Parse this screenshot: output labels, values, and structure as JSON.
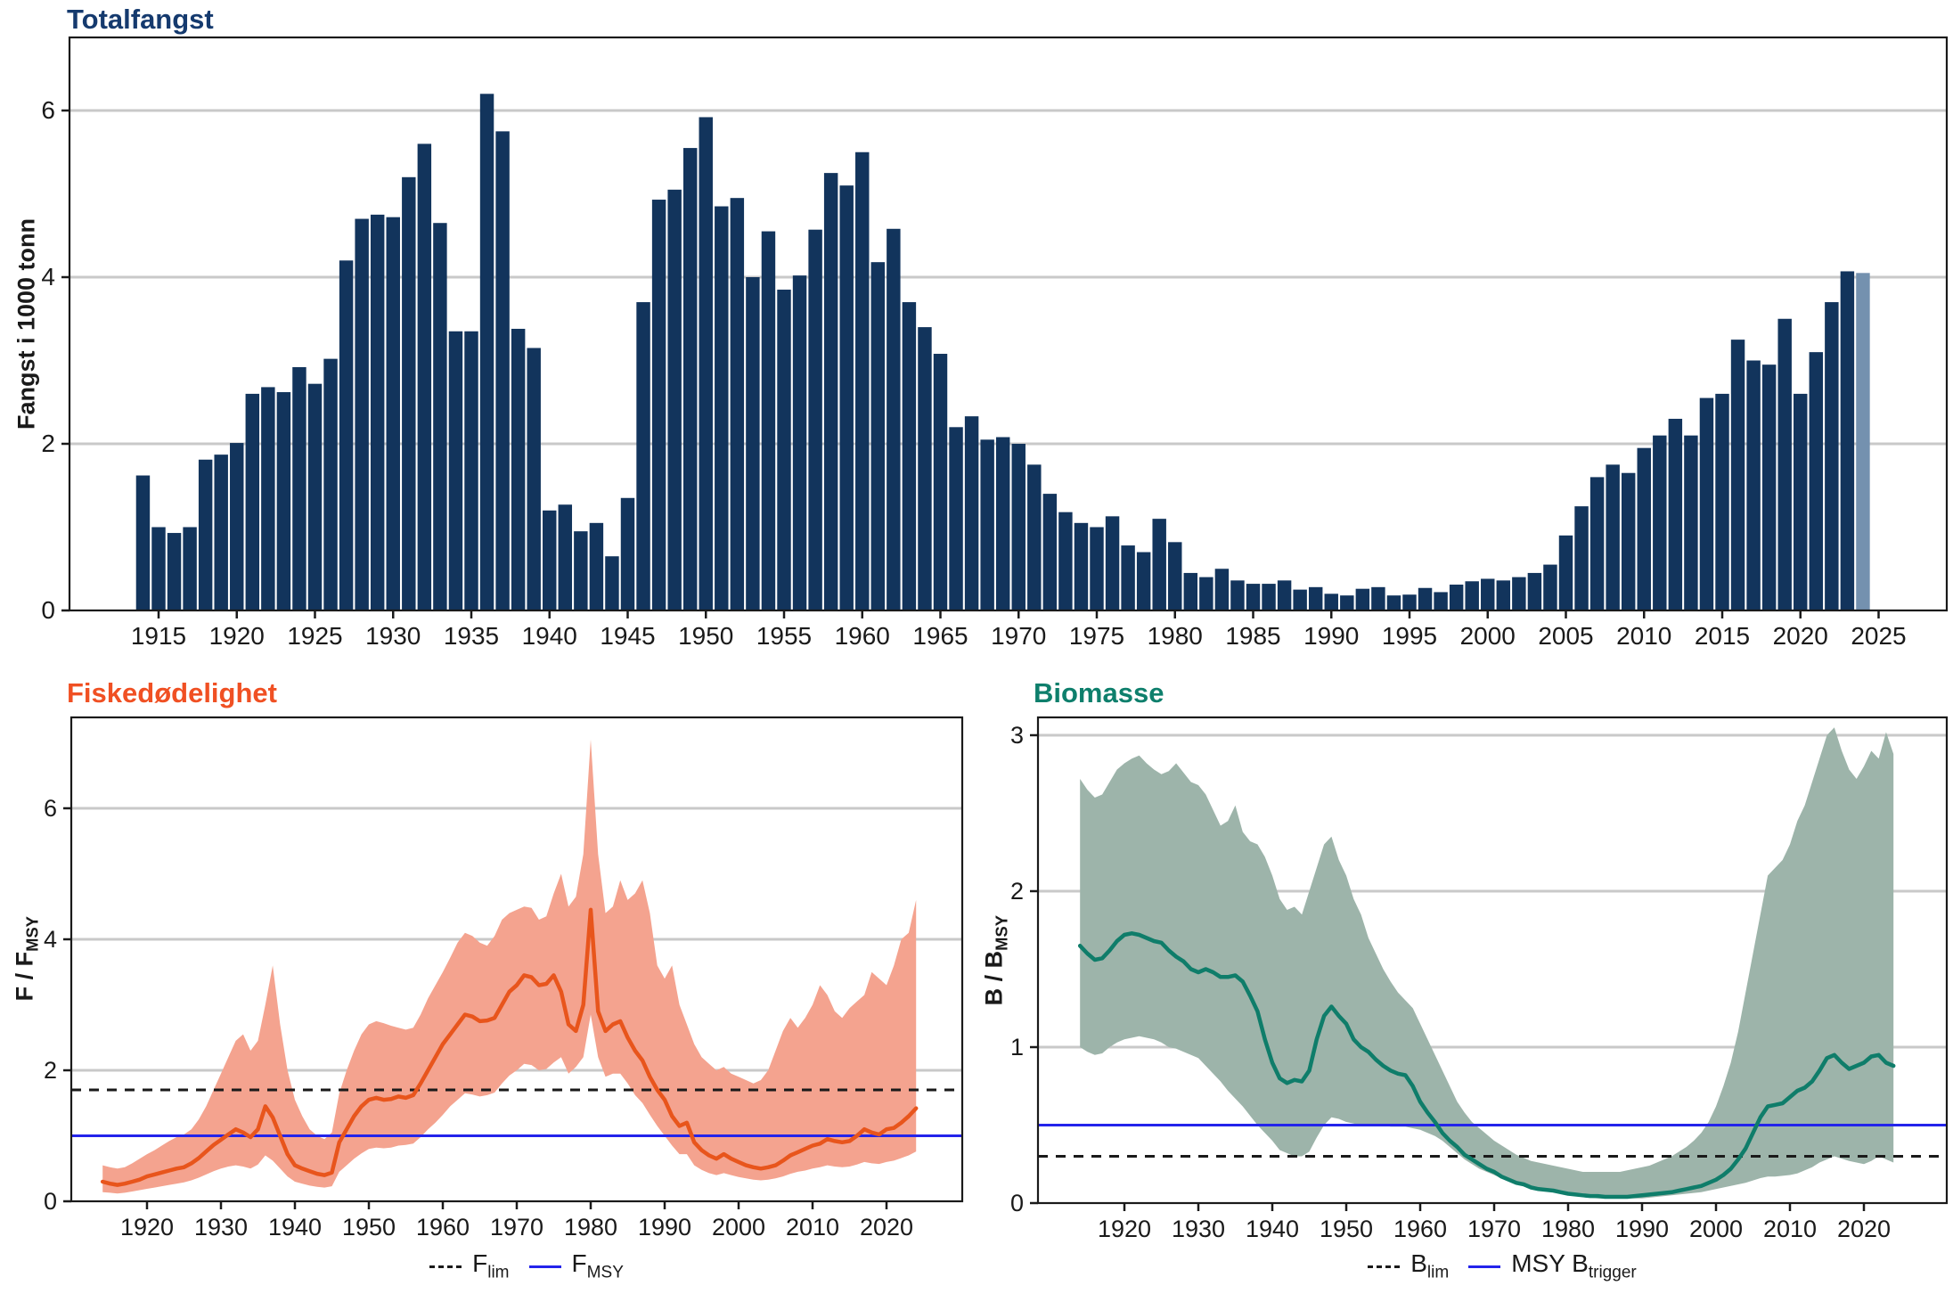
{
  "chart_data": [
    {
      "id": "totalfangst",
      "type": "bar",
      "title": "Totalfangst",
      "ylabel": "Fangst i 1000 tonn",
      "x_start_year": 1914,
      "values": [
        1.62,
        1.0,
        0.93,
        1.0,
        1.81,
        1.87,
        2.01,
        2.6,
        2.68,
        2.62,
        2.92,
        2.72,
        3.02,
        4.2,
        4.7,
        4.75,
        4.72,
        5.2,
        5.6,
        4.65,
        3.35,
        3.35,
        6.2,
        5.75,
        3.38,
        3.15,
        1.2,
        1.27,
        0.95,
        1.05,
        0.65,
        1.35,
        3.7,
        4.93,
        5.05,
        5.55,
        5.92,
        4.85,
        4.95,
        4.0,
        4.55,
        3.85,
        4.02,
        4.57,
        5.25,
        5.1,
        5.5,
        4.18,
        4.58,
        3.7,
        3.4,
        3.08,
        2.2,
        2.33,
        2.05,
        2.08,
        2.0,
        1.75,
        1.4,
        1.18,
        1.05,
        1.0,
        1.13,
        0.78,
        0.7,
        1.1,
        0.82,
        0.45,
        0.4,
        0.5,
        0.36,
        0.32,
        0.32,
        0.36,
        0.25,
        0.28,
        0.2,
        0.18,
        0.26,
        0.28,
        0.18,
        0.19,
        0.27,
        0.22,
        0.31,
        0.35,
        0.38,
        0.36,
        0.4,
        0.45,
        0.55,
        0.9,
        1.25,
        1.6,
        1.75,
        1.65,
        1.95,
        2.1,
        2.3,
        2.1,
        2.55,
        2.6,
        3.25,
        3.0,
        2.95,
        3.5,
        2.6,
        3.1,
        3.7,
        4.07
      ],
      "forecast": {
        "year": 2024,
        "value": 4.05
      },
      "xticks": [
        1915,
        1920,
        1925,
        1930,
        1935,
        1940,
        1945,
        1950,
        1955,
        1960,
        1965,
        1970,
        1975,
        1980,
        1985,
        1990,
        1995,
        2000,
        2005,
        2010,
        2015,
        2020,
        2025
      ],
      "yticks": [
        0,
        2,
        4,
        6
      ],
      "ylim": [
        0,
        6.88
      ],
      "grid": "horizontal",
      "legend_position": "none",
      "colors": {
        "bar": "#12345c",
        "forecast_bar": "#7491af",
        "title": "#153a6e"
      }
    },
    {
      "id": "fiskedodelighet",
      "type": "line+band",
      "title": "Fiskedødelighet",
      "ylabel_main": "F / F",
      "ylabel_sub": "MSY",
      "x_start_year": 1914,
      "line": [
        0.3,
        0.27,
        0.25,
        0.27,
        0.3,
        0.33,
        0.38,
        0.41,
        0.44,
        0.47,
        0.5,
        0.52,
        0.58,
        0.66,
        0.76,
        0.86,
        0.94,
        1.02,
        1.1,
        1.05,
        0.98,
        1.1,
        1.45,
        1.28,
        1.0,
        0.72,
        0.55,
        0.5,
        0.46,
        0.42,
        0.4,
        0.44,
        0.9,
        1.1,
        1.3,
        1.45,
        1.55,
        1.58,
        1.55,
        1.56,
        1.6,
        1.58,
        1.62,
        1.8,
        2.0,
        2.2,
        2.4,
        2.55,
        2.7,
        2.85,
        2.82,
        2.75,
        2.76,
        2.8,
        3.0,
        3.2,
        3.3,
        3.45,
        3.42,
        3.3,
        3.32,
        3.45,
        3.2,
        2.7,
        2.6,
        3.0,
        4.45,
        2.9,
        2.6,
        2.7,
        2.75,
        2.5,
        2.3,
        2.15,
        1.9,
        1.7,
        1.55,
        1.3,
        1.15,
        1.2,
        0.9,
        0.78,
        0.7,
        0.65,
        0.72,
        0.65,
        0.6,
        0.55,
        0.52,
        0.5,
        0.52,
        0.55,
        0.62,
        0.7,
        0.75,
        0.8,
        0.85,
        0.88,
        0.95,
        0.92,
        0.9,
        0.92,
        1.0,
        1.1,
        1.05,
        1.02,
        1.1,
        1.12,
        1.2,
        1.3,
        1.42
      ],
      "band_upper": [
        0.55,
        0.52,
        0.5,
        0.52,
        0.58,
        0.65,
        0.72,
        0.78,
        0.85,
        0.92,
        0.98,
        1.02,
        1.1,
        1.25,
        1.45,
        1.7,
        1.95,
        2.2,
        2.45,
        2.55,
        2.3,
        2.45,
        3.0,
        3.6,
        2.7,
        2.0,
        1.55,
        1.3,
        1.1,
        1.0,
        0.95,
        1.05,
        1.65,
        2.0,
        2.3,
        2.55,
        2.7,
        2.75,
        2.72,
        2.68,
        2.65,
        2.62,
        2.65,
        2.85,
        3.1,
        3.3,
        3.5,
        3.72,
        3.95,
        4.1,
        4.05,
        3.95,
        3.9,
        4.05,
        4.3,
        4.4,
        4.45,
        4.5,
        4.48,
        4.3,
        4.35,
        4.7,
        5.0,
        4.5,
        4.65,
        5.3,
        7.05,
        5.3,
        4.4,
        4.5,
        4.9,
        4.6,
        4.7,
        4.9,
        4.4,
        3.6,
        3.4,
        3.6,
        3.0,
        2.7,
        2.4,
        2.2,
        2.1,
        2.0,
        2.05,
        1.95,
        1.9,
        1.85,
        1.8,
        1.85,
        2.0,
        2.3,
        2.6,
        2.8,
        2.65,
        2.8,
        3.0,
        3.3,
        3.15,
        2.9,
        2.8,
        2.95,
        3.05,
        3.15,
        3.5,
        3.4,
        3.3,
        3.6,
        4.0,
        4.1,
        4.6
      ],
      "band_lower": [
        0.14,
        0.13,
        0.12,
        0.13,
        0.15,
        0.17,
        0.19,
        0.21,
        0.23,
        0.25,
        0.27,
        0.29,
        0.32,
        0.36,
        0.41,
        0.46,
        0.5,
        0.53,
        0.55,
        0.53,
        0.5,
        0.56,
        0.7,
        0.62,
        0.5,
        0.38,
        0.3,
        0.27,
        0.24,
        0.22,
        0.21,
        0.23,
        0.45,
        0.55,
        0.65,
        0.73,
        0.8,
        0.82,
        0.81,
        0.82,
        0.85,
        0.86,
        0.88,
        0.98,
        1.1,
        1.2,
        1.32,
        1.45,
        1.55,
        1.65,
        1.63,
        1.6,
        1.62,
        1.66,
        1.8,
        1.92,
        2.0,
        2.1,
        2.08,
        2.0,
        2.02,
        2.12,
        2.2,
        1.95,
        2.05,
        2.2,
        2.85,
        2.2,
        1.9,
        1.95,
        1.95,
        1.8,
        1.62,
        1.5,
        1.32,
        1.15,
        1.0,
        0.85,
        0.72,
        0.72,
        0.55,
        0.48,
        0.43,
        0.4,
        0.43,
        0.4,
        0.37,
        0.35,
        0.33,
        0.32,
        0.33,
        0.35,
        0.38,
        0.42,
        0.45,
        0.47,
        0.5,
        0.52,
        0.55,
        0.53,
        0.52,
        0.53,
        0.56,
        0.6,
        0.58,
        0.57,
        0.6,
        0.62,
        0.66,
        0.7,
        0.76
      ],
      "reference_lines": [
        {
          "label_main": "F",
          "label_sub": "lim",
          "value": 1.7,
          "style": "dashed",
          "color": "#1a1a1a"
        },
        {
          "label_main": "F",
          "label_sub": "MSY",
          "value": 1.0,
          "style": "solid",
          "color": "#2424eb"
        }
      ],
      "xticks": [
        1920,
        1930,
        1940,
        1950,
        1960,
        1970,
        1980,
        1990,
        2000,
        2010,
        2020
      ],
      "yticks": [
        0,
        2,
        4,
        6
      ],
      "ylim": [
        0,
        7.39
      ],
      "grid": "horizontal",
      "legend_position": "bottom",
      "colors": {
        "line": "#e8551c",
        "band": "#f4a38f",
        "title": "#f05023"
      }
    },
    {
      "id": "biomasse",
      "type": "line+band",
      "title": "Biomasse",
      "ylabel_main": "B / B",
      "ylabel_sub": "MSY",
      "x_start_year": 1914,
      "line": [
        1.65,
        1.6,
        1.56,
        1.57,
        1.62,
        1.68,
        1.72,
        1.73,
        1.72,
        1.7,
        1.68,
        1.67,
        1.62,
        1.58,
        1.55,
        1.5,
        1.48,
        1.5,
        1.48,
        1.45,
        1.45,
        1.46,
        1.42,
        1.33,
        1.23,
        1.05,
        0.9,
        0.8,
        0.77,
        0.79,
        0.78,
        0.85,
        1.05,
        1.2,
        1.26,
        1.2,
        1.15,
        1.05,
        1.0,
        0.97,
        0.92,
        0.88,
        0.85,
        0.83,
        0.82,
        0.75,
        0.65,
        0.58,
        0.52,
        0.45,
        0.4,
        0.36,
        0.31,
        0.28,
        0.25,
        0.22,
        0.2,
        0.17,
        0.15,
        0.13,
        0.12,
        0.1,
        0.09,
        0.085,
        0.08,
        0.07,
        0.06,
        0.055,
        0.05,
        0.045,
        0.045,
        0.04,
        0.04,
        0.04,
        0.04,
        0.045,
        0.05,
        0.055,
        0.06,
        0.065,
        0.07,
        0.08,
        0.09,
        0.1,
        0.11,
        0.13,
        0.15,
        0.18,
        0.22,
        0.28,
        0.35,
        0.45,
        0.55,
        0.62,
        0.63,
        0.64,
        0.68,
        0.72,
        0.74,
        0.78,
        0.85,
        0.93,
        0.95,
        0.9,
        0.86,
        0.88,
        0.9,
        0.94,
        0.95,
        0.9,
        0.88
      ],
      "band_upper": [
        2.72,
        2.65,
        2.6,
        2.62,
        2.7,
        2.78,
        2.82,
        2.85,
        2.87,
        2.82,
        2.78,
        2.75,
        2.77,
        2.82,
        2.76,
        2.7,
        2.68,
        2.62,
        2.52,
        2.42,
        2.45,
        2.55,
        2.38,
        2.32,
        2.3,
        2.22,
        2.1,
        1.95,
        1.88,
        1.9,
        1.85,
        2.0,
        2.15,
        2.3,
        2.35,
        2.2,
        2.1,
        1.95,
        1.85,
        1.7,
        1.6,
        1.5,
        1.42,
        1.35,
        1.3,
        1.25,
        1.15,
        1.05,
        0.95,
        0.85,
        0.75,
        0.65,
        0.58,
        0.52,
        0.48,
        0.44,
        0.4,
        0.37,
        0.34,
        0.31,
        0.29,
        0.27,
        0.26,
        0.25,
        0.24,
        0.23,
        0.22,
        0.21,
        0.2,
        0.2,
        0.2,
        0.2,
        0.2,
        0.2,
        0.21,
        0.22,
        0.23,
        0.24,
        0.26,
        0.28,
        0.3,
        0.33,
        0.36,
        0.4,
        0.45,
        0.52,
        0.62,
        0.75,
        0.9,
        1.1,
        1.35,
        1.6,
        1.85,
        2.1,
        2.15,
        2.2,
        2.3,
        2.45,
        2.55,
        2.7,
        2.85,
        3.0,
        3.05,
        2.9,
        2.78,
        2.72,
        2.8,
        2.9,
        2.85,
        3.02,
        2.88
      ],
      "band_lower": [
        1.0,
        0.97,
        0.95,
        0.96,
        1.0,
        1.03,
        1.05,
        1.06,
        1.07,
        1.06,
        1.05,
        1.03,
        1.0,
        0.99,
        0.97,
        0.95,
        0.93,
        0.88,
        0.83,
        0.78,
        0.72,
        0.67,
        0.62,
        0.56,
        0.5,
        0.45,
        0.4,
        0.34,
        0.32,
        0.3,
        0.3,
        0.33,
        0.42,
        0.5,
        0.55,
        0.54,
        0.52,
        0.51,
        0.5,
        0.5,
        0.5,
        0.5,
        0.49,
        0.49,
        0.49,
        0.48,
        0.47,
        0.45,
        0.43,
        0.4,
        0.36,
        0.32,
        0.28,
        0.25,
        0.22,
        0.2,
        0.18,
        0.16,
        0.14,
        0.12,
        0.11,
        0.1,
        0.09,
        0.085,
        0.08,
        0.07,
        0.06,
        0.05,
        0.04,
        0.035,
        0.03,
        0.03,
        0.03,
        0.03,
        0.03,
        0.03,
        0.03,
        0.035,
        0.04,
        0.045,
        0.05,
        0.055,
        0.06,
        0.065,
        0.07,
        0.08,
        0.09,
        0.1,
        0.11,
        0.12,
        0.13,
        0.145,
        0.16,
        0.17,
        0.17,
        0.175,
        0.18,
        0.19,
        0.21,
        0.23,
        0.26,
        0.28,
        0.3,
        0.285,
        0.27,
        0.26,
        0.25,
        0.27,
        0.3,
        0.28,
        0.26
      ],
      "reference_lines": [
        {
          "label_main": "B",
          "label_sub": "lim",
          "value": 0.3,
          "style": "dashed",
          "color": "#1a1a1a"
        },
        {
          "label_main": "MSY B",
          "label_sub": "trigger",
          "value": 0.5,
          "style": "solid",
          "color": "#2424eb"
        }
      ],
      "xticks": [
        1920,
        1930,
        1940,
        1950,
        1960,
        1970,
        1980,
        1990,
        2000,
        2010,
        2020
      ],
      "yticks": [
        0,
        1,
        2,
        3
      ],
      "ylim": [
        0,
        3.11
      ],
      "grid": "horizontal",
      "legend_position": "bottom",
      "colors": {
        "line": "#0f7d6a",
        "band": "#9db4aa",
        "title": "#0e7f6c"
      }
    }
  ]
}
